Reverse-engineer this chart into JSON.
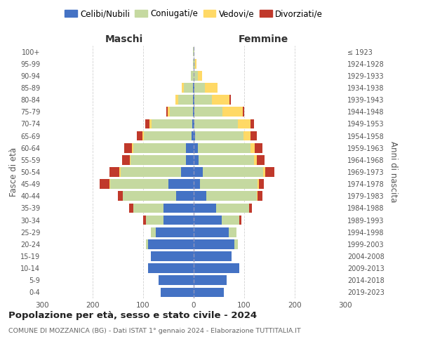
{
  "age_groups": [
    "0-4",
    "5-9",
    "10-14",
    "15-19",
    "20-24",
    "25-29",
    "30-34",
    "35-39",
    "40-44",
    "45-49",
    "50-54",
    "55-59",
    "60-64",
    "65-69",
    "70-74",
    "75-79",
    "80-84",
    "85-89",
    "90-94",
    "95-99",
    "100+"
  ],
  "birth_years": [
    "2019-2023",
    "2014-2018",
    "2009-2013",
    "2004-2008",
    "1999-2003",
    "1994-1998",
    "1989-1993",
    "1984-1988",
    "1979-1983",
    "1974-1978",
    "1969-1973",
    "1964-1968",
    "1959-1963",
    "1954-1958",
    "1949-1953",
    "1944-1948",
    "1939-1943",
    "1934-1938",
    "1929-1933",
    "1924-1928",
    "≤ 1923"
  ],
  "males_celibi": [
    65,
    70,
    90,
    85,
    90,
    75,
    60,
    60,
    35,
    50,
    25,
    15,
    15,
    4,
    3,
    2,
    1,
    2,
    0,
    0,
    0
  ],
  "males_coniugati": [
    0,
    0,
    0,
    0,
    5,
    10,
    35,
    60,
    105,
    115,
    120,
    110,
    105,
    95,
    80,
    45,
    30,
    18,
    5,
    2,
    1
  ],
  "males_vedovi": [
    0,
    0,
    0,
    0,
    0,
    0,
    0,
    0,
    0,
    1,
    2,
    2,
    2,
    3,
    5,
    5,
    5,
    3,
    1,
    0,
    0
  ],
  "males_divorziati": [
    0,
    0,
    0,
    0,
    0,
    0,
    5,
    8,
    10,
    20,
    20,
    15,
    15,
    10,
    8,
    2,
    0,
    0,
    0,
    0,
    0
  ],
  "females_nubili": [
    60,
    65,
    90,
    75,
    80,
    70,
    55,
    45,
    25,
    12,
    18,
    10,
    8,
    3,
    2,
    2,
    1,
    2,
    0,
    0,
    0
  ],
  "females_coniugate": [
    0,
    0,
    0,
    0,
    8,
    15,
    35,
    65,
    100,
    115,
    120,
    110,
    105,
    95,
    85,
    55,
    35,
    20,
    8,
    3,
    1
  ],
  "females_vedove": [
    0,
    0,
    0,
    0,
    0,
    0,
    0,
    0,
    1,
    2,
    4,
    5,
    8,
    15,
    25,
    40,
    35,
    25,
    8,
    2,
    0
  ],
  "females_divorziate": [
    0,
    0,
    0,
    0,
    0,
    0,
    5,
    5,
    10,
    10,
    18,
    15,
    15,
    12,
    8,
    3,
    2,
    0,
    0,
    0,
    0
  ],
  "color_celibi": "#4472C4",
  "color_coniugati": "#C5D9A0",
  "color_vedovi": "#FFD966",
  "color_divorziati": "#C0392B",
  "title": "Popolazione per età, sesso e stato civile - 2024",
  "subtitle": "COMUNE DI MOZZANICA (BG) - Dati ISTAT 1° gennaio 2024 - Elaborazione TUTTITALIA.IT",
  "label_maschi": "Maschi",
  "label_femmine": "Femmine",
  "ylabel_left": "Fasce di età",
  "ylabel_right": "Anni di nascita",
  "legend_labels": [
    "Celibi/Nubili",
    "Coniugati/e",
    "Vedovi/e",
    "Divorziati/e"
  ],
  "xlim": 300,
  "bg_color": "#FFFFFF",
  "grid_color": "#CCCCCC"
}
